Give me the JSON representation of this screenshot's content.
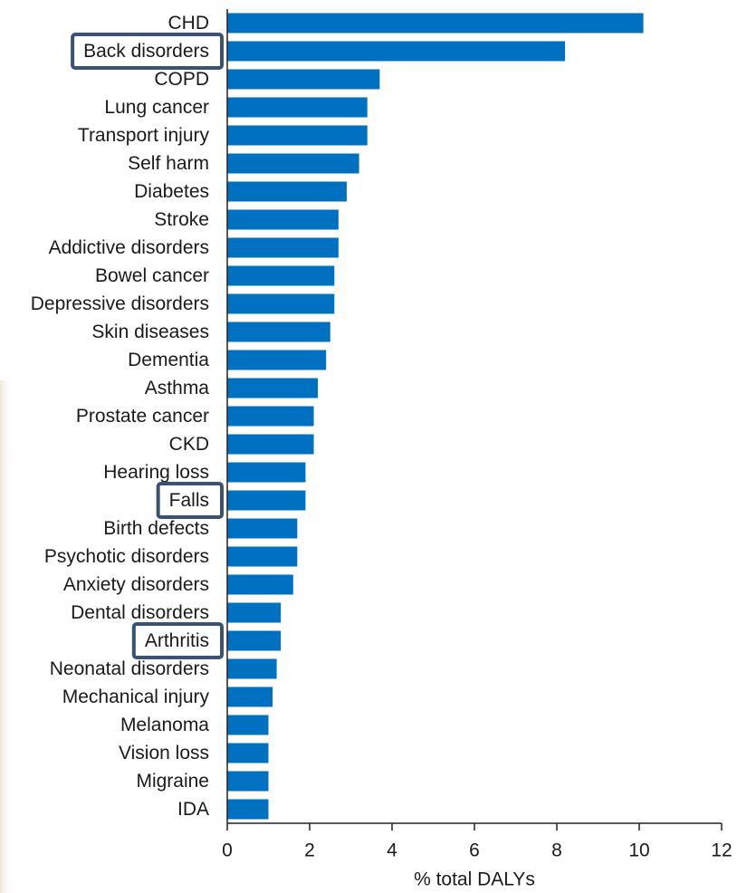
{
  "chart_data": {
    "type": "bar",
    "orientation": "horizontal",
    "xlabel": "% total DALYs",
    "categories": [
      "CHD",
      "Back disorders",
      "COPD",
      "Lung cancer",
      "Transport injury",
      "Self harm",
      "Diabetes",
      "Stroke",
      "Addictive disorders",
      "Bowel cancer",
      "Depressive disorders",
      "Skin diseases",
      "Dementia",
      "Asthma",
      "Prostate cancer",
      "CKD",
      "Hearing loss",
      "Falls",
      "Birth defects",
      "Psychotic disorders",
      "Anxiety disorders",
      "Dental disorders",
      "Arthritis",
      "Neonatal disorders",
      "Mechanical injury",
      "Melanoma",
      "Vision loss",
      "Migraine",
      "IDA"
    ],
    "values": [
      10.1,
      8.2,
      3.7,
      3.4,
      3.4,
      3.2,
      2.9,
      2.7,
      2.7,
      2.6,
      2.6,
      2.5,
      2.4,
      2.2,
      2.1,
      2.1,
      1.9,
      1.9,
      1.7,
      1.7,
      1.6,
      1.3,
      1.3,
      1.2,
      1.1,
      1.0,
      1.0,
      1.0,
      1.0
    ],
    "color": "#0070c0",
    "xlim": [
      0,
      12
    ],
    "xticks": [
      0,
      2,
      4,
      6,
      8,
      10,
      12
    ],
    "highlight": [
      1,
      17,
      22
    ],
    "highlight_color": "#3b5373"
  }
}
